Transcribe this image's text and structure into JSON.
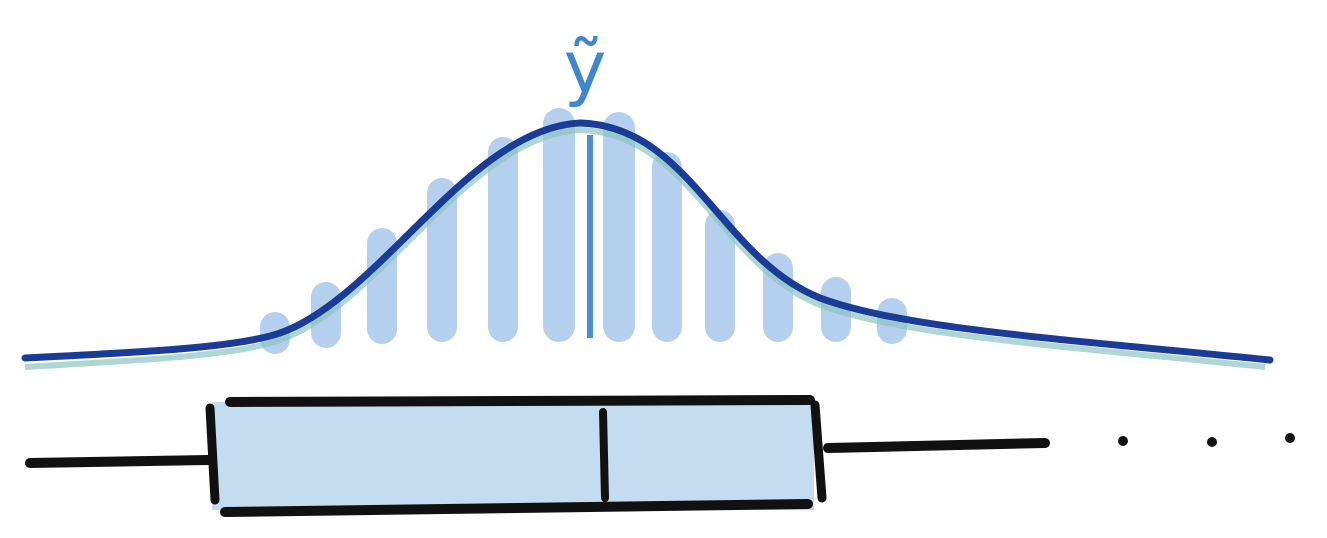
{
  "label": "ỹ"
}
